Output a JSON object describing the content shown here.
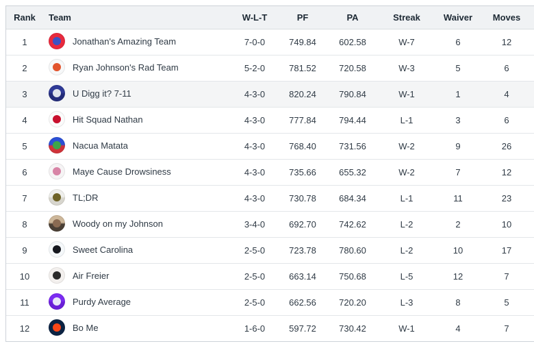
{
  "table": {
    "columns": [
      {
        "key": "rank",
        "label": "Rank",
        "align": "center"
      },
      {
        "key": "team",
        "label": "Team",
        "align": "left"
      },
      {
        "key": "wlt",
        "label": "W-L-T",
        "align": "center"
      },
      {
        "key": "pf",
        "label": "PF",
        "align": "center"
      },
      {
        "key": "pa",
        "label": "PA",
        "align": "center"
      },
      {
        "key": "streak",
        "label": "Streak",
        "align": "center"
      },
      {
        "key": "waiver",
        "label": "Waiver",
        "align": "center"
      },
      {
        "key": "moves",
        "label": "Moves",
        "align": "center"
      }
    ],
    "rows": [
      {
        "rank": "1",
        "team": "Jonathan's Amazing Team",
        "wlt": "7-0-0",
        "pf": "749.84",
        "pa": "602.58",
        "streak": "W-7",
        "waiver": "6",
        "moves": "12",
        "highlighted": false,
        "avatar": {
          "icon": "football-helmet-avatar",
          "bg": "#e82a3d",
          "bg2": "#e82a3d",
          "fg": "#3b53c4"
        }
      },
      {
        "rank": "2",
        "team": "Ryan Johnson's Rad Team",
        "wlt": "5-2-0",
        "pf": "781.52",
        "pa": "720.58",
        "streak": "W-3",
        "waiver": "5",
        "moves": "6",
        "highlighted": false,
        "avatar": {
          "icon": "foam-finger-avatar",
          "bg": "#f7f8f9",
          "bg2": "#f7f8f9",
          "fg": "#e2542d"
        }
      },
      {
        "rank": "3",
        "team": "U Digg it? 7-11",
        "wlt": "4-3-0",
        "pf": "820.24",
        "pa": "790.84",
        "streak": "W-1",
        "waiver": "1",
        "moves": "4",
        "highlighted": true,
        "avatar": {
          "icon": "football-player-avatar",
          "bg": "#2f3a96",
          "bg2": "#232c7a",
          "fg": "#dfe3ec"
        }
      },
      {
        "rank": "4",
        "team": "Hit Squad Nathan",
        "wlt": "4-3-0",
        "pf": "777.84",
        "pa": "794.44",
        "streak": "L-1",
        "waiver": "3",
        "moves": "6",
        "highlighted": false,
        "avatar": {
          "icon": "red-helmet-avatar",
          "bg": "#fbfbfb",
          "bg2": "#fbfbfb",
          "fg": "#c8102e"
        }
      },
      {
        "rank": "5",
        "team": "Nacua Matata",
        "wlt": "4-3-0",
        "pf": "768.40",
        "pa": "731.56",
        "streak": "W-2",
        "waiver": "9",
        "moves": "26",
        "highlighted": false,
        "avatar": {
          "icon": "rams-helmet-avatar",
          "bg": "#2b50d6",
          "bg2": "#cf3339",
          "fg": "#3da649"
        }
      },
      {
        "rank": "6",
        "team": "Maye Cause Drowsiness",
        "wlt": "4-3-0",
        "pf": "735.66",
        "pa": "655.32",
        "streak": "W-2",
        "waiver": "7",
        "moves": "12",
        "highlighted": false,
        "avatar": {
          "icon": "cow-face-avatar",
          "bg": "#f6f4f5",
          "bg2": "#f6f4f5",
          "fg": "#d884a6"
        }
      },
      {
        "rank": "7",
        "team": "TL;DR",
        "wlt": "4-3-0",
        "pf": "730.78",
        "pa": "684.34",
        "streak": "L-1",
        "waiver": "11",
        "moves": "23",
        "highlighted": false,
        "avatar": {
          "icon": "jaguar-head-avatar",
          "bg": "#efefec",
          "bg2": "#d8d6ce",
          "fg": "#6f6327"
        }
      },
      {
        "rank": "8",
        "team": "Woody on my Johnson",
        "wlt": "3-4-0",
        "pf": "692.70",
        "pa": "742.62",
        "streak": "L-2",
        "waiver": "2",
        "moves": "10",
        "highlighted": false,
        "avatar": {
          "icon": "person-photo-avatar",
          "bg": "#cdb79a",
          "bg2": "#4a3f35",
          "fg": "#8a6a52"
        }
      },
      {
        "rank": "9",
        "team": "Sweet Carolina",
        "wlt": "2-5-0",
        "pf": "723.78",
        "pa": "780.60",
        "streak": "L-2",
        "waiver": "10",
        "moves": "17",
        "highlighted": false,
        "avatar": {
          "icon": "panther-logo-avatar",
          "bg": "#f5f8fa",
          "bg2": "#f5f8fa",
          "fg": "#16181f"
        }
      },
      {
        "rank": "10",
        "team": "Air Freier",
        "wlt": "2-5-0",
        "pf": "663.14",
        "pa": "750.68",
        "streak": "L-5",
        "waiver": "12",
        "moves": "7",
        "highlighted": false,
        "avatar": {
          "icon": "steelers-player-avatar",
          "bg": "#f3f0ee",
          "bg2": "#f3f0ee",
          "fg": "#2b2b2b"
        }
      },
      {
        "rank": "11",
        "team": "Purdy Average",
        "wlt": "2-5-0",
        "pf": "662.56",
        "pa": "720.20",
        "streak": "L-3",
        "waiver": "8",
        "moves": "5",
        "highlighted": false,
        "avatar": {
          "icon": "purple-helmet-avatar",
          "bg": "#7b2bf2",
          "bg2": "#6a1fd8",
          "fg": "#e9e6f8"
        }
      },
      {
        "rank": "12",
        "team": "Bo Me",
        "wlt": "1-6-0",
        "pf": "597.72",
        "pa": "730.42",
        "streak": "W-1",
        "waiver": "4",
        "moves": "7",
        "highlighted": false,
        "avatar": {
          "icon": "broncos-logo-avatar",
          "bg": "#0c2343",
          "bg2": "#0c2343",
          "fg": "#fa4616"
        }
      }
    ],
    "colors": {
      "header_bg": "#f0f2f4",
      "header_text": "#1d2934",
      "body_text": "#2f3a45",
      "outer_border": "#cdd2d8",
      "row_border": "#e3e6e9",
      "highlight_row_bg": "#f4f5f6"
    }
  }
}
